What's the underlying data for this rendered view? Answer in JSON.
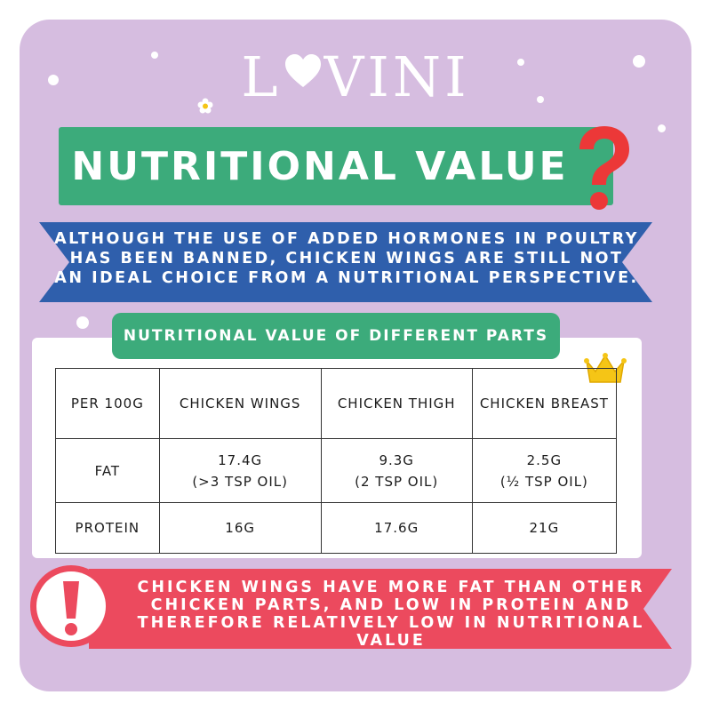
{
  "brand": {
    "logo_text": "LOVINI",
    "logo_left": "L",
    "logo_right": "VINI"
  },
  "title": "NUTRITIONAL VALUE",
  "intro": "ALTHOUGH THE USE OF ADDED HORMONES IN POULTRY HAS BEEN BANNED, CHICKEN WINGS ARE STILL NOT AN IDEAL CHOICE FROM A NUTRITIONAL PERSPECTIVE.",
  "table": {
    "caption": "NUTRITIONAL VALUE OF DIFFERENT PARTS",
    "headers": [
      "PER 100G",
      "CHICKEN WINGS",
      "CHICKEN THIGH",
      "CHICKEN BREAST"
    ],
    "rows": [
      {
        "label": "FAT",
        "values": [
          {
            "amount": "17.4G",
            "note": "(>3 TSP OIL)"
          },
          {
            "amount": "9.3G",
            "note": "(2 TSP OIL)"
          },
          {
            "amount": "2.5G",
            "note": "(½ TSP OIL)"
          }
        ]
      },
      {
        "label": "PROTEIN",
        "values": [
          {
            "amount": "16G"
          },
          {
            "amount": "17.6G"
          },
          {
            "amount": "21G"
          }
        ]
      }
    ]
  },
  "conclusion": "CHICKEN WINGS HAVE MORE FAT THAN OTHER CHICKEN PARTS, AND LOW IN PROTEIN AND THEREFORE RELATIVELY LOW IN NUTRITIONAL VALUE",
  "icons": {
    "heart": "heart-icon",
    "question": "question-mark-icon",
    "crown": "crown-icon",
    "alert": "exclamation-icon",
    "flower": "flower-icon"
  },
  "colors": {
    "background": "#d6bde0",
    "green": "#3cab7b",
    "blue": "#2f5fac",
    "red": "#ec4a5e",
    "crown": "#f5c516"
  }
}
